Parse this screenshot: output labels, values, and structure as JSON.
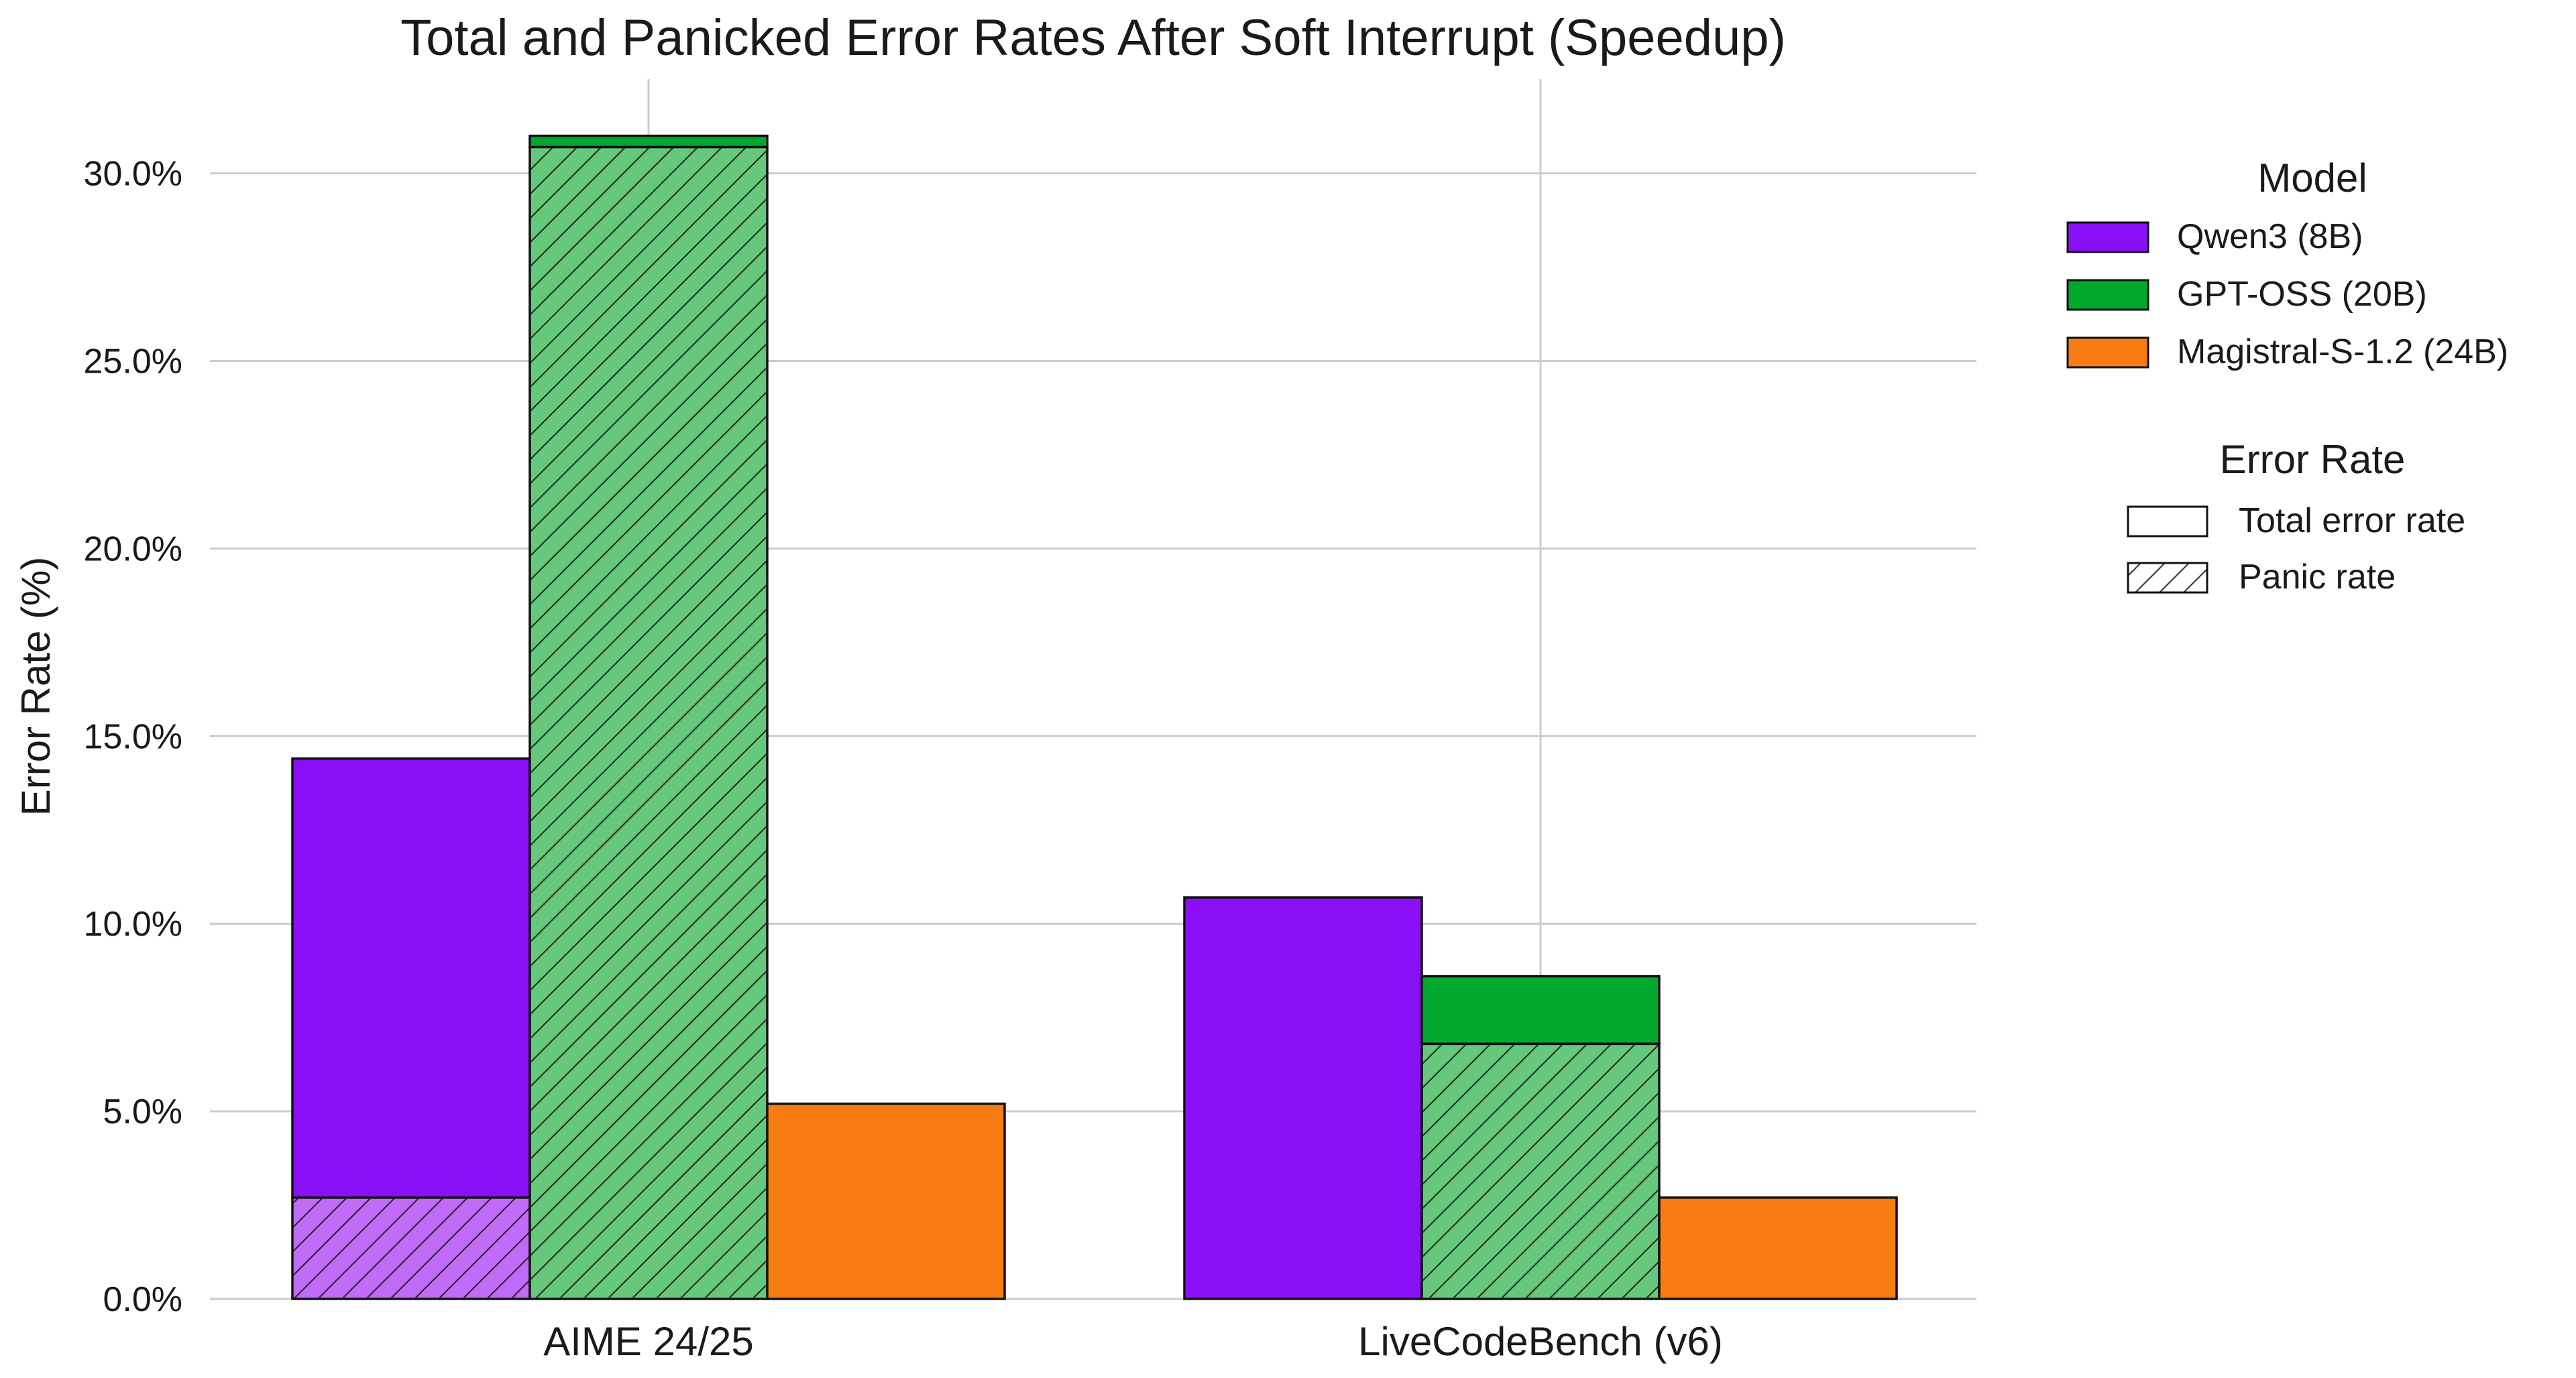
{
  "chart_data": {
    "type": "bar",
    "title": "Total and Panicked Error Rates After Soft Interrupt (Speedup)",
    "ylabel": "Error Rate (%)",
    "xlabel": "",
    "ylim": [
      0,
      32.5
    ],
    "yticks": [
      0,
      5,
      10,
      15,
      20,
      25,
      30
    ],
    "ytick_labels": [
      "0.0%",
      "5.0%",
      "10.0%",
      "15.0%",
      "20.0%",
      "25.0%",
      "30.0%"
    ],
    "categories": [
      "AIME 24/25",
      "LiveCodeBench (v6)"
    ],
    "grid": true,
    "series": [
      {
        "name": "Qwen3 (8B)",
        "color": "#8a10f7",
        "light_color": "#c06cf8",
        "total": [
          14.4,
          10.7
        ],
        "panic": [
          2.7,
          0
        ]
      },
      {
        "name": "GPT-OSS (20B)",
        "color": "#00a92e",
        "light_color": "#66c87b",
        "total": [
          31.0,
          8.6
        ],
        "panic": [
          30.7,
          6.8
        ]
      },
      {
        "name": "Magistral-S-1.2 (24B)",
        "color": "#f77c12",
        "light_color": "#f9ab6b",
        "total": [
          5.2,
          2.7
        ],
        "panic": [
          0,
          0
        ]
      }
    ],
    "legend": {
      "placement": "right",
      "model_title": "Model",
      "rate_title": "Error Rate",
      "rate_items": [
        "Total error rate",
        "Panic rate"
      ]
    }
  }
}
